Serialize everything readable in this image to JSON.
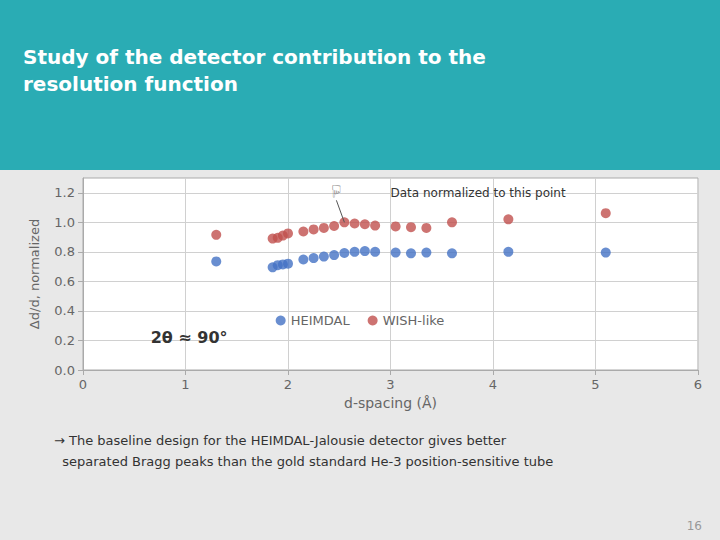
{
  "chart_data": {
    "type": "scatter",
    "title": "Study of the detector contribution to the\nresolution function",
    "x_label": "d-spacing (Å)",
    "y_label": "Δd/d, normalized",
    "x": [
      1.3,
      1.85,
      1.9,
      1.95,
      2.0,
      2.15,
      2.25,
      2.35,
      2.45,
      2.55,
      2.65,
      2.75,
      2.85,
      3.05,
      3.2,
      3.35,
      3.6,
      4.15,
      5.1
    ],
    "series": [
      {
        "name": "HEIMDAL",
        "color": "#4472c4",
        "values": [
          0.735,
          0.695,
          0.71,
          0.715,
          0.72,
          0.748,
          0.758,
          0.768,
          0.778,
          0.792,
          0.8,
          0.805,
          0.8,
          0.795,
          0.79,
          0.795,
          0.79,
          0.8,
          0.795
        ]
      },
      {
        "name": "WISH-like",
        "color": "#c0504d",
        "values": [
          0.915,
          0.89,
          0.895,
          0.91,
          0.925,
          0.938,
          0.952,
          0.962,
          0.975,
          1.0,
          0.992,
          0.987,
          0.978,
          0.972,
          0.967,
          0.962,
          1.0,
          1.02,
          1.062
        ]
      }
    ],
    "xlim": [
      0,
      6
    ],
    "ylim": [
      0,
      1.3
    ],
    "xticks": [
      0,
      1,
      2,
      3,
      4,
      5,
      6
    ],
    "yticks": [
      {
        "value": 0,
        "label": "0.0"
      },
      0.2,
      0.4,
      0.6,
      0.8,
      {
        "value": 1.0,
        "label": "1.0"
      },
      1.2
    ],
    "grid": true,
    "legend": "lower center",
    "marker": "circle",
    "annotations": [
      {
        "text": "Data normalized to this point",
        "x": 3.0,
        "y": 1.2
      },
      {
        "text": "☜",
        "x": 2.55,
        "y": 1.0
      },
      {
        "text": "2θ ≈ 90°"
      }
    ],
    "footnote": "→ The baseline design for the HEIMDAL-Jalousie detector gives better\n  separated Bragg peaks than the gold standard He-3 position-sensitive tube",
    "page_number": "16"
  }
}
